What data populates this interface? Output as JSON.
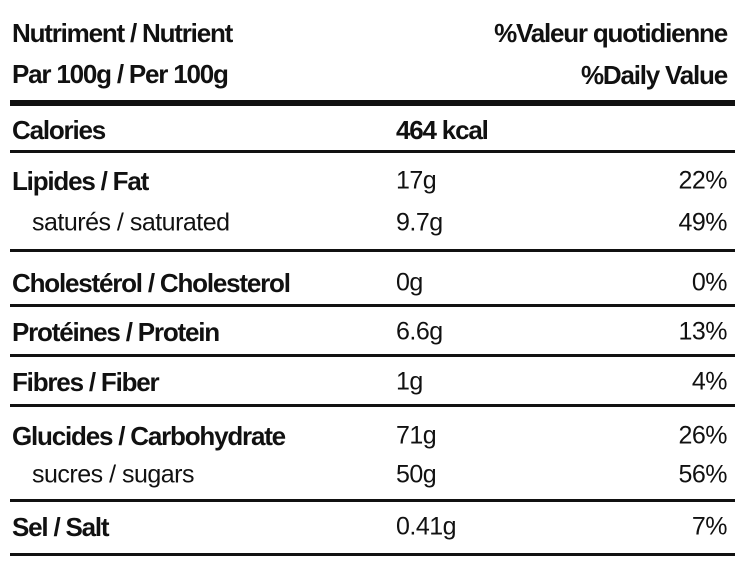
{
  "header": {
    "left": [
      "Nutriment / Nutrient",
      "Par 100g / Per 100g"
    ],
    "right": [
      "%Valeur quotidienne",
      "%Daily Value"
    ]
  },
  "groups": [
    [
      {
        "label": "Calories",
        "amount": "464 kcal"
      }
    ],
    [
      {
        "label": "Lipides / Fat",
        "amount": "17g",
        "percent": "22%"
      },
      {
        "label": "saturés / saturated",
        "amount": "9.7g",
        "percent": "49%"
      }
    ],
    [
      {
        "label": "Cholestérol / Cholesterol",
        "amount": "0g",
        "percent": "0%"
      }
    ],
    [
      {
        "label": "Protéines / Protein",
        "amount": "6.6g",
        "percent": "13%"
      }
    ],
    [
      {
        "label": "Fibres / Fiber",
        "amount": "1g",
        "percent": "4%"
      }
    ],
    [
      {
        "label": "Glucides / Carbohydrate",
        "amount": "71g",
        "percent": "26%"
      },
      {
        "label": "sucres / sugars",
        "amount": "50g",
        "percent": "56%"
      }
    ],
    [
      {
        "label": "Sel / Salt",
        "amount": "0.41g",
        "percent": "7%"
      }
    ]
  ]
}
